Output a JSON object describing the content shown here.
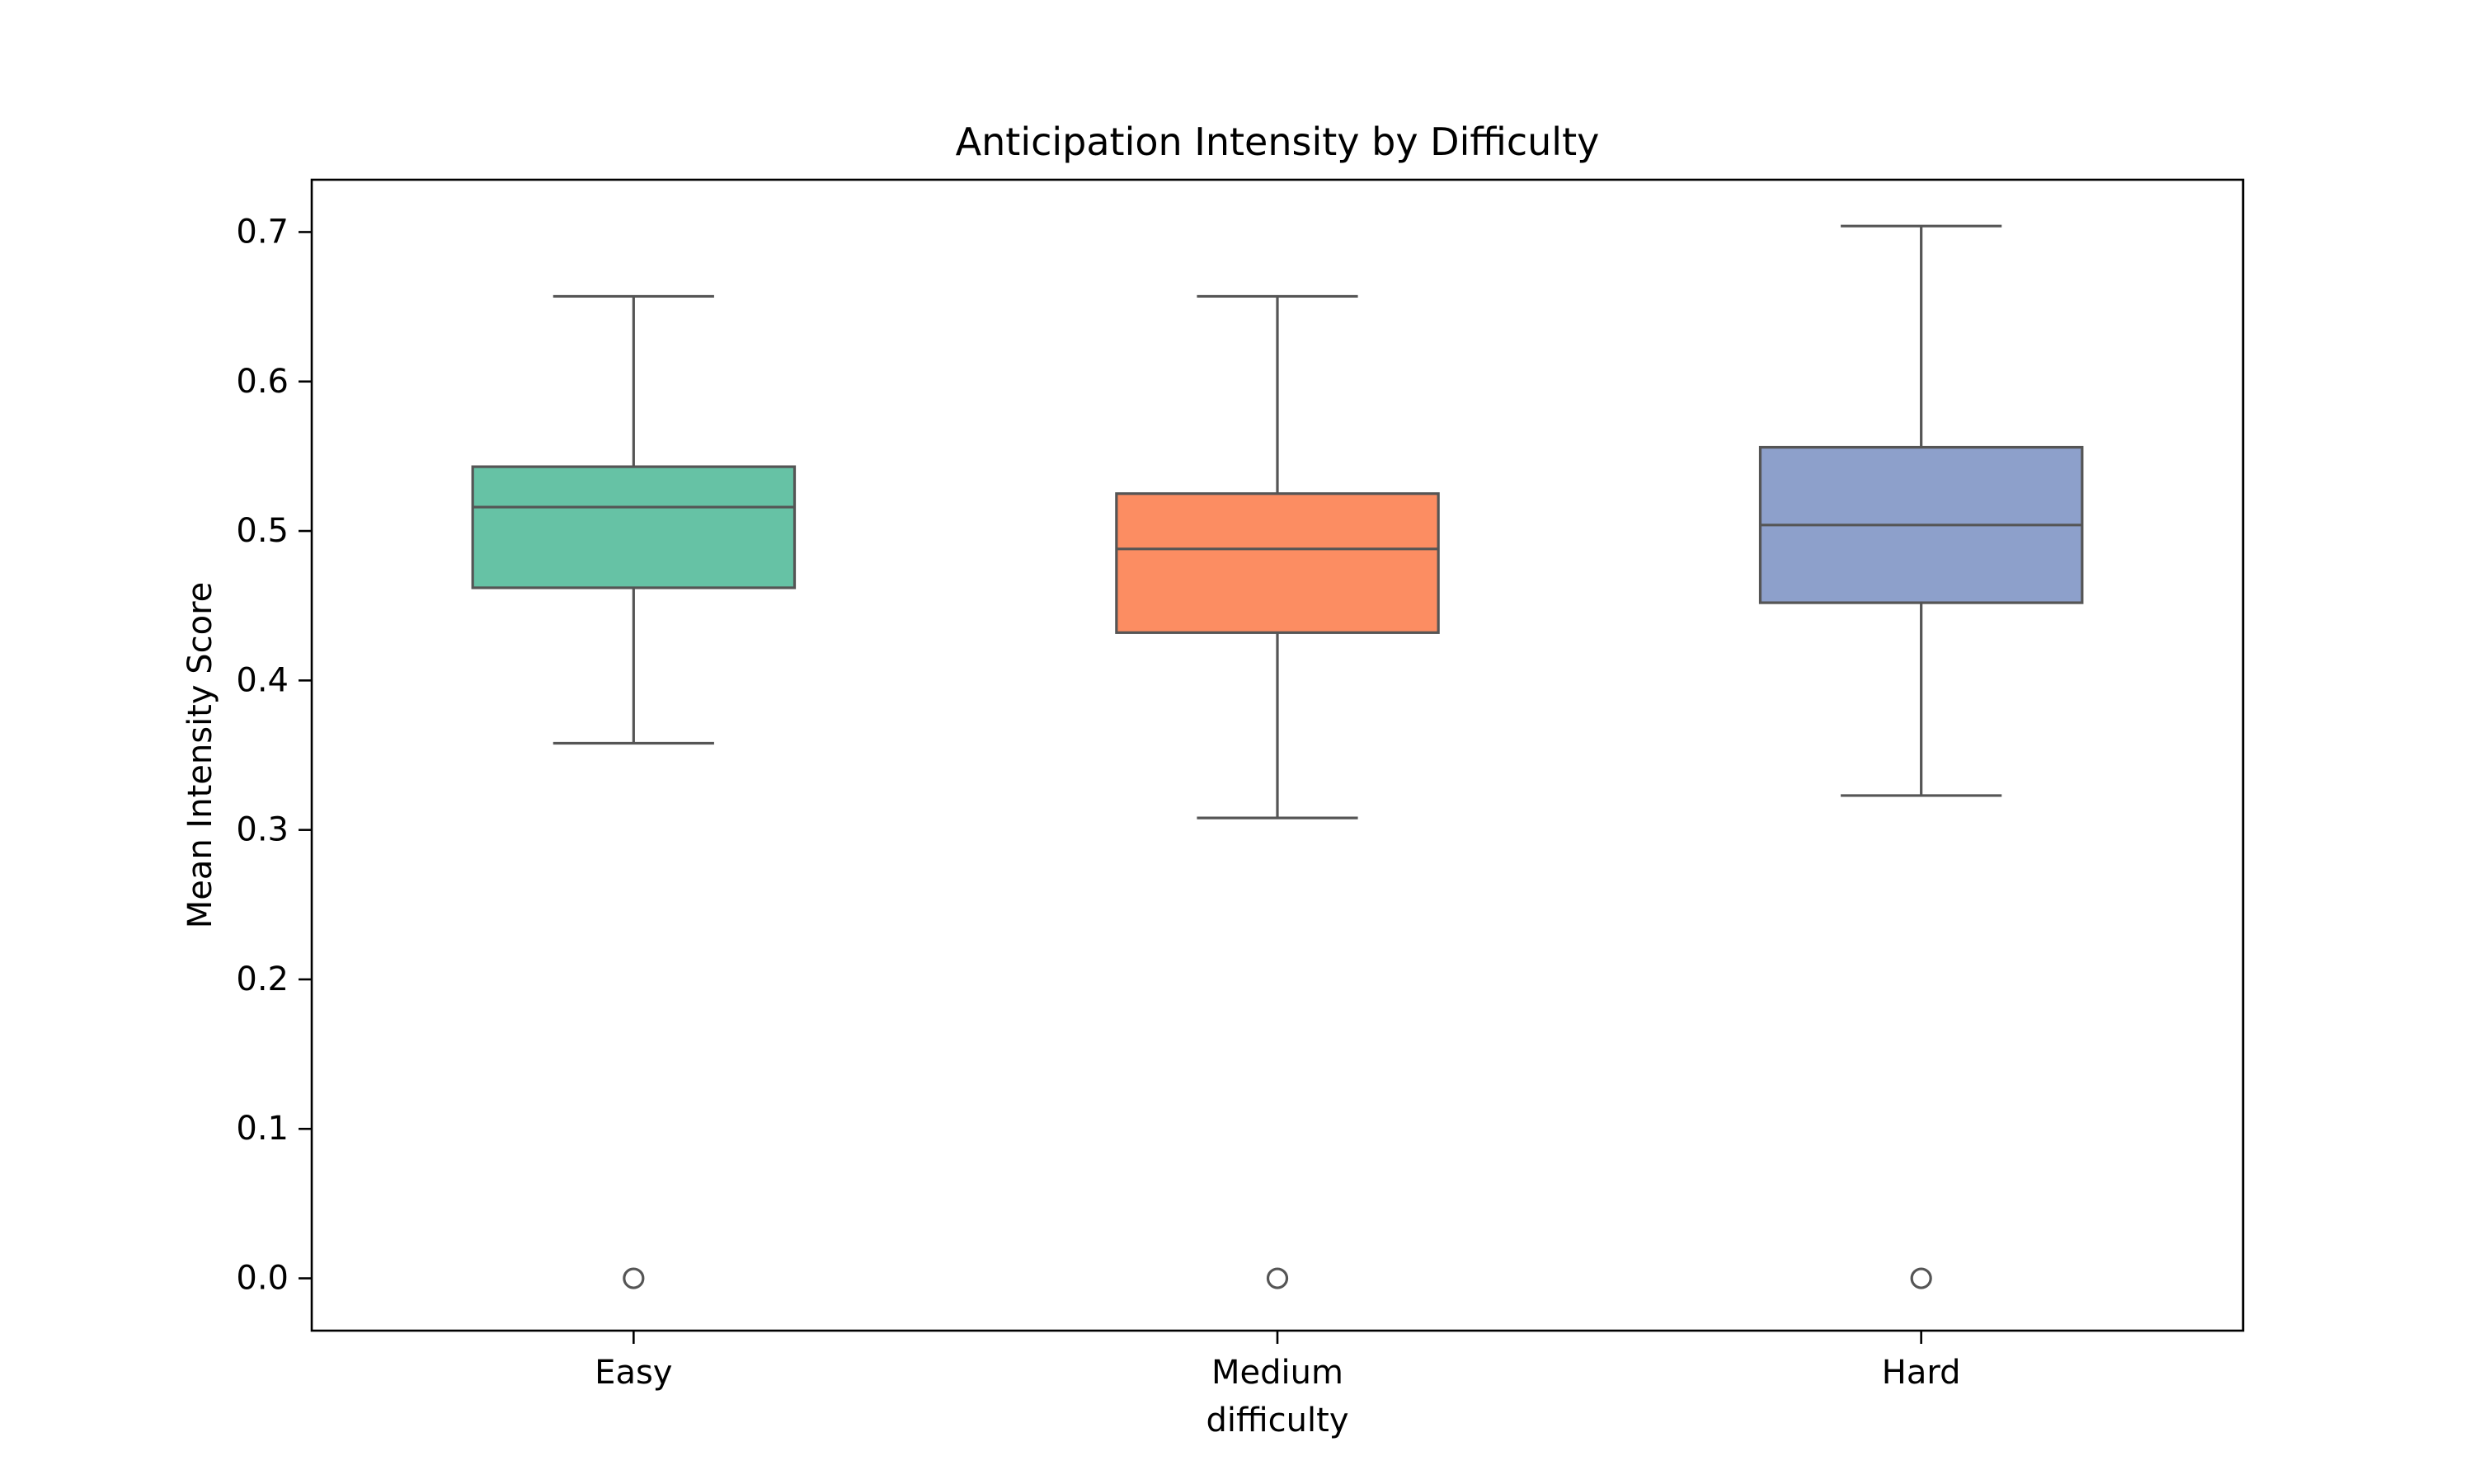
{
  "chart_data": {
    "type": "box",
    "title": "Anticipation Intensity by Difficulty",
    "xlabel": "difficulty",
    "ylabel": "Mean Intensity Score",
    "ylim": [
      -0.035,
      0.735
    ],
    "yticks": [
      "0.0",
      "0.1",
      "0.2",
      "0.3",
      "0.4",
      "0.5",
      "0.6",
      "0.7"
    ],
    "grid": false,
    "categories": [
      "Easy",
      "Medium",
      "Hard"
    ],
    "series": [
      {
        "category": "Easy",
        "color": "#66c2a5",
        "whisker_low": 0.358,
        "q1": 0.462,
        "median": 0.516,
        "q3": 0.543,
        "whisker_high": 0.657,
        "outliers": [
          0.0
        ]
      },
      {
        "category": "Medium",
        "color": "#fc8d62",
        "whisker_low": 0.308,
        "q1": 0.432,
        "median": 0.488,
        "q3": 0.525,
        "whisker_high": 0.657,
        "outliers": [
          0.0
        ]
      },
      {
        "category": "Hard",
        "color": "#8da0cb",
        "whisker_low": 0.323,
        "q1": 0.452,
        "median": 0.504,
        "q3": 0.556,
        "whisker_high": 0.704,
        "outliers": [
          0.0
        ]
      }
    ]
  }
}
